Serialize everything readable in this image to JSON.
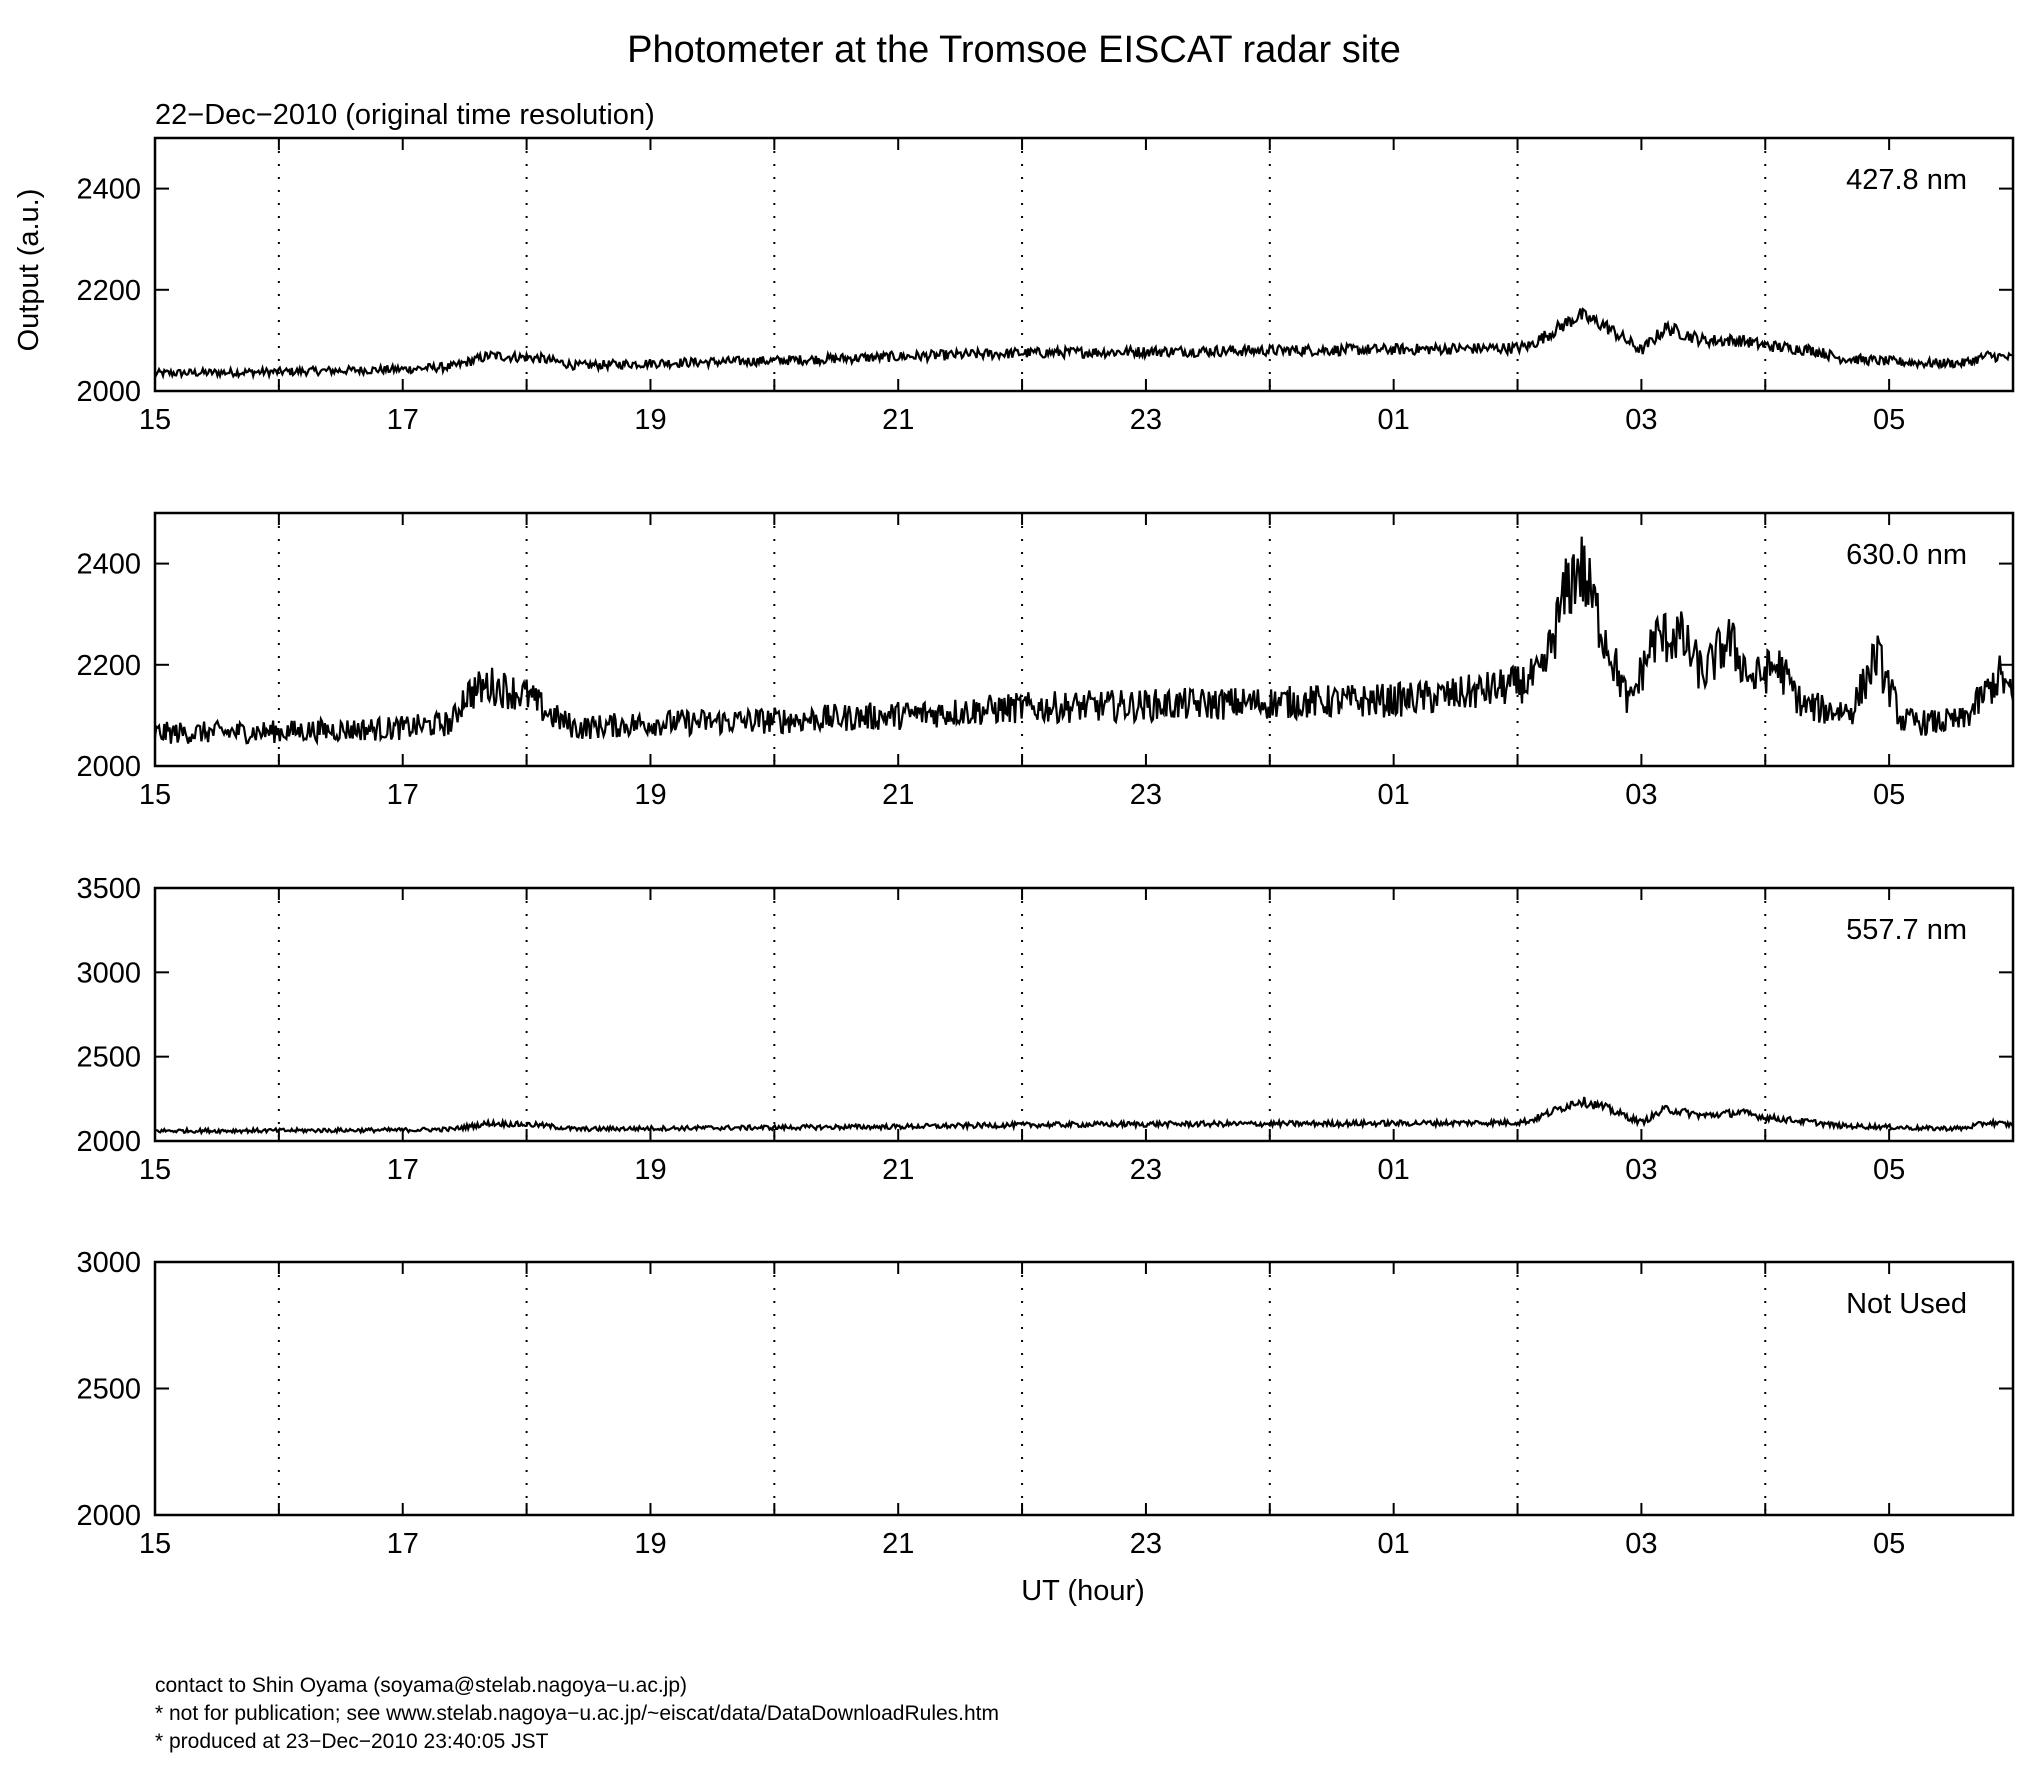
{
  "chart_data": {
    "type": "line",
    "title": "Photometer at the Tromsoe EISCAT radar site",
    "subtitle": "22−Dec−2010 (original time resolution)",
    "xlabel": "UT (hour)",
    "ylabel": "Output (a.u.)",
    "x_ticks": [
      "15",
      "17",
      "19",
      "21",
      "23",
      "01",
      "03",
      "05"
    ],
    "x_range_hours_ut": [
      "15",
      "06"
    ],
    "grid": "vertical dotted lines every hour",
    "panels": [
      {
        "label": "427.8 nm",
        "ylim": [
          2000,
          2500
        ],
        "yticks": [
          "2000",
          "2200",
          "2400"
        ],
        "series": {
          "x": [
            15,
            16,
            17,
            17.4,
            17.7,
            18.1,
            18.4,
            19,
            20,
            21,
            22,
            23,
            24,
            25,
            26,
            26.1,
            26.5,
            26.7,
            27,
            27.2,
            27.5,
            27.8,
            28,
            28.4,
            28.6,
            28.9,
            29.3,
            29.6,
            29.8,
            30
          ],
          "y": [
            2035,
            2038,
            2043,
            2048,
            2070,
            2065,
            2050,
            2055,
            2060,
            2068,
            2075,
            2078,
            2080,
            2082,
            2085,
            2090,
            2150,
            2130,
            2080,
            2125,
            2100,
            2100,
            2090,
            2080,
            2065,
            2060,
            2055,
            2055,
            2070,
            2065
          ]
        },
        "noise": 8
      },
      {
        "label": "630.0 nm",
        "ylim": [
          2000,
          2500
        ],
        "yticks": [
          "2000",
          "2200",
          "2400"
        ],
        "series": {
          "x": [
            15,
            16,
            17,
            17.4,
            17.5,
            17.7,
            18.0,
            18.2,
            18.4,
            19,
            20,
            21,
            22,
            23,
            24,
            25,
            25.5,
            26,
            26.2,
            26.4,
            26.5,
            26.7,
            26.9,
            27.1,
            27.3,
            27.5,
            27.7,
            27.9,
            28.1,
            28.3,
            28.5,
            28.7,
            28.9,
            29.1,
            29.3,
            29.6,
            29.8,
            29.9,
            30
          ],
          "y": [
            2065,
            2068,
            2075,
            2085,
            2140,
            2160,
            2140,
            2100,
            2075,
            2085,
            2090,
            2100,
            2115,
            2120,
            2125,
            2130,
            2140,
            2160,
            2180,
            2350,
            2400,
            2260,
            2120,
            2250,
            2260,
            2180,
            2250,
            2170,
            2200,
            2120,
            2110,
            2110,
            2220,
            2090,
            2085,
            2090,
            2150,
            2180,
            2130
          ]
        },
        "noise": 22
      },
      {
        "label": "557.7 nm",
        "ylim": [
          2000,
          3500
        ],
        "yticks": [
          "2000",
          "2500",
          "3000",
          "3500"
        ],
        "series": {
          "x": [
            15,
            16,
            17,
            17.4,
            17.7,
            18.1,
            18.4,
            19,
            20,
            21,
            22,
            23,
            24,
            25,
            26,
            26.1,
            26.5,
            26.7,
            27,
            27.2,
            27.5,
            27.8,
            28,
            28.4,
            28.6,
            28.9,
            29.3,
            29.6,
            29.8,
            30
          ],
          "y": [
            2060,
            2062,
            2065,
            2070,
            2105,
            2095,
            2070,
            2075,
            2080,
            2085,
            2095,
            2100,
            2102,
            2105,
            2110,
            2120,
            2240,
            2200,
            2110,
            2190,
            2150,
            2170,
            2140,
            2110,
            2090,
            2085,
            2075,
            2075,
            2110,
            2095
          ]
        },
        "noise": 12
      },
      {
        "label": "Not Used",
        "ylim": [
          2000,
          3000
        ],
        "yticks": [
          "2000",
          "2500",
          "3000"
        ],
        "series": {
          "x": [],
          "y": []
        },
        "noise": 0
      }
    ]
  },
  "footer": {
    "line1": "contact to Shin Oyama (soyama@stelab.nagoya−u.ac.jp)",
    "line2": "* not for publication; see www.stelab.nagoya−u.ac.jp/~eiscat/data/DataDownloadRules.htm",
    "line3": "* produced at 23−Dec−2010 23:40:05 JST"
  }
}
